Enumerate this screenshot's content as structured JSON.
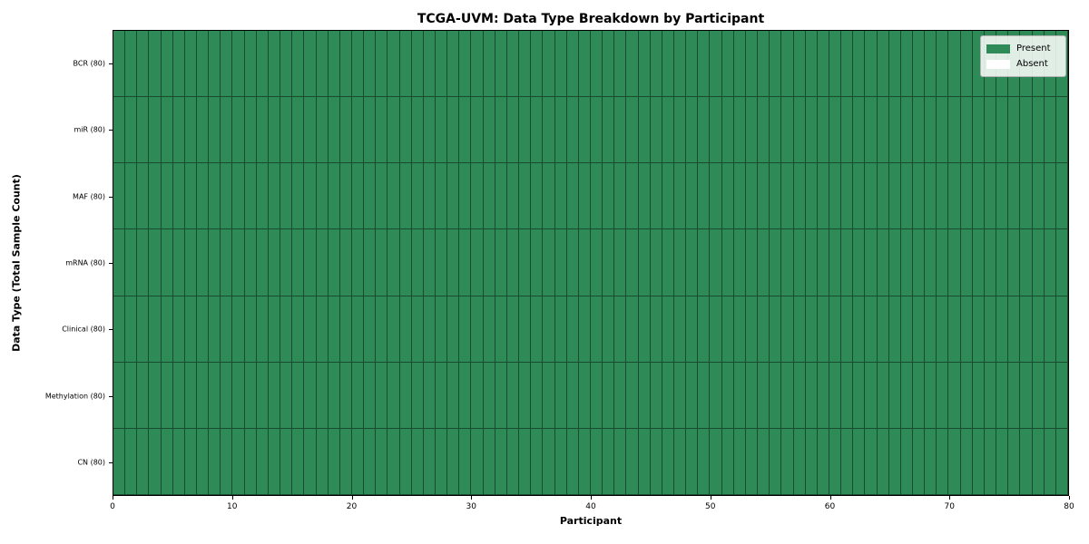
{
  "chart_data": {
    "type": "heatmap",
    "title": "TCGA-UVM: Data Type Breakdown by Participant",
    "xlabel": "Participant",
    "ylabel": "Data Type (Total Sample Count)",
    "xlim": [
      0,
      80
    ],
    "x_ticks": [
      0,
      10,
      20,
      30,
      40,
      50,
      60,
      70,
      80
    ],
    "n_participants": 80,
    "rows_top_to_bottom": [
      "BCR (80)",
      "miR (80)",
      "MAF (80)",
      "mRNA (80)",
      "Clinical (80)",
      "Methylation (80)",
      "CN (80)"
    ],
    "series": [
      {
        "name": "BCR (80)",
        "present_count": 80,
        "absent_count": 0
      },
      {
        "name": "miR (80)",
        "present_count": 80,
        "absent_count": 0
      },
      {
        "name": "MAF (80)",
        "present_count": 80,
        "absent_count": 0
      },
      {
        "name": "mRNA (80)",
        "present_count": 80,
        "absent_count": 0
      },
      {
        "name": "Clinical (80)",
        "present_count": 80,
        "absent_count": 0
      },
      {
        "name": "Methylation (80)",
        "present_count": 80,
        "absent_count": 0
      },
      {
        "name": "CN (80)",
        "present_count": 80,
        "absent_count": 0
      }
    ],
    "legend": {
      "position": "upper right",
      "entries": [
        {
          "label": "Present",
          "color": "#2e8b57"
        },
        {
          "label": "Absent",
          "color": "#ffffff"
        }
      ]
    },
    "colors": {
      "present": "#2e8b57",
      "absent": "#ffffff",
      "cell_border": "rgba(0,0,0,0.45)",
      "plot_border": "#000000",
      "background": "#ffffff"
    }
  }
}
